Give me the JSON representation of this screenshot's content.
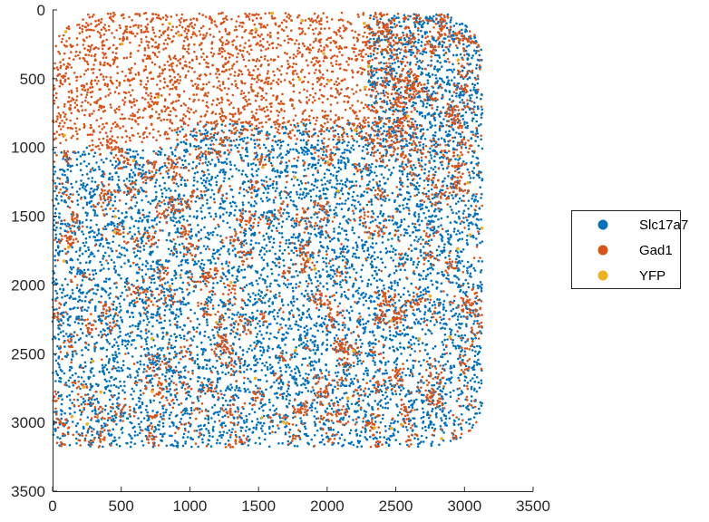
{
  "chart_data": {
    "type": "scatter",
    "title": "",
    "xlabel": "",
    "ylabel": "",
    "xlim": [
      0,
      3500
    ],
    "ylim": [
      0,
      3500
    ],
    "y_reversed": true,
    "xticks": [
      "0",
      "500",
      "1000",
      "1500",
      "2000",
      "2500",
      "3000",
      "3500"
    ],
    "yticks": [
      "0",
      "500",
      "1000",
      "1500",
      "2000",
      "2500",
      "3000",
      "3500"
    ],
    "grid": false,
    "legend_position": "outside-right",
    "series": [
      {
        "name": "Slc17a7",
        "color": "#0072BD",
        "regions": [
          {
            "x": [
              0,
              3130
            ],
            "y": [
              1000,
              3180
            ],
            "n": 6000,
            "clustered": false
          },
          {
            "x": [
              2300,
              3130
            ],
            "y": [
              30,
              1000
            ],
            "n": 900,
            "clustered": false
          },
          {
            "x": [
              900,
              2300
            ],
            "y": [
              820,
              1000
            ],
            "n": 200,
            "clustered": false
          }
        ]
      },
      {
        "name": "Gad1",
        "color": "#D95319",
        "regions": [
          {
            "x": [
              0,
              2650
            ],
            "y": [
              20,
              950
            ],
            "n": 2200,
            "clustered": false
          },
          {
            "x": [
              0,
              3130
            ],
            "y": [
              950,
              3180
            ],
            "n": 2600,
            "clustered": true
          },
          {
            "x": [
              2300,
              3130
            ],
            "y": [
              30,
              1000
            ],
            "n": 500,
            "clustered": true
          }
        ]
      },
      {
        "name": "YFP",
        "color": "#EDB120",
        "regions": [
          {
            "x": [
              0,
              3130
            ],
            "y": [
              0,
              3180
            ],
            "n": 60,
            "clustered": false
          }
        ]
      }
    ]
  }
}
